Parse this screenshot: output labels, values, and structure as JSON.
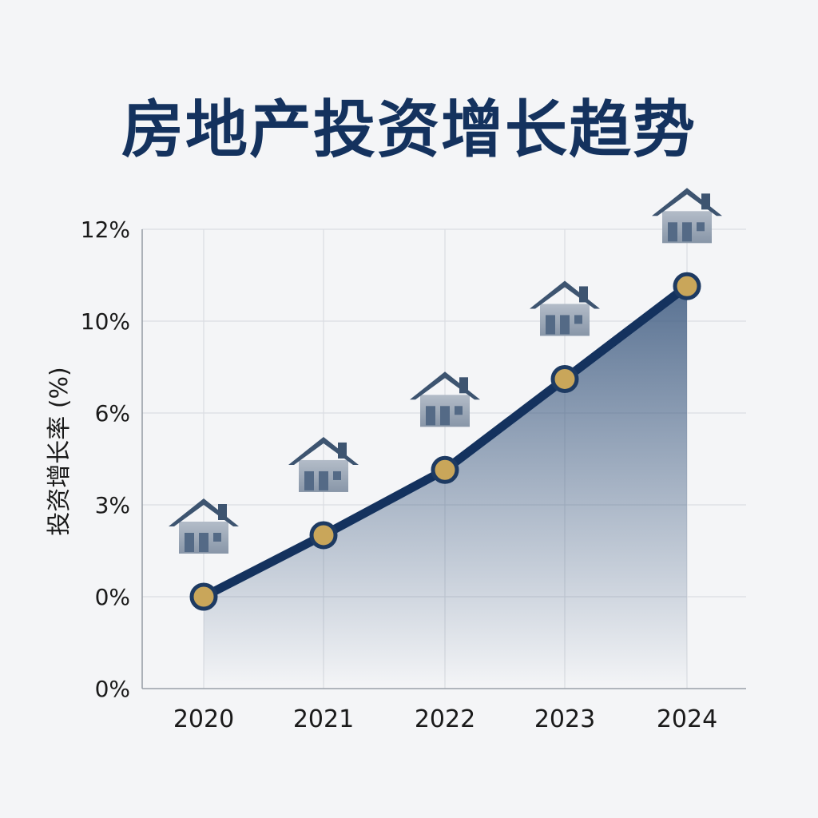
{
  "chart_data": {
    "type": "line",
    "title": "房地产投资增长趋势",
    "ylabel": "投资增长率 (%)",
    "xlabel": "",
    "categories": [
      "2020",
      "2021",
      "2022",
      "2023",
      "2024"
    ],
    "y_tick_labels": [
      "12%",
      "10%",
      "6%",
      "3%",
      "0%",
      "0%"
    ],
    "y_tick_positions": [
      5,
      4,
      3,
      2,
      1,
      0
    ],
    "y_slot_range": [
      0,
      5
    ],
    "series": [
      {
        "values": [
          1.0,
          1.67,
          2.38,
          3.37,
          4.38
        ]
      }
    ],
    "grid": true,
    "area_fill": true,
    "marker_icon": "house-icon",
    "colors": {
      "line": "#14325e",
      "marker_fill": "#c9a65a",
      "marker_stroke": "#1d3a62",
      "area_top": "#3d5a80",
      "grid": "#dadde2",
      "axis": "#9aa0a8",
      "text": "#1a1a1a",
      "house_roof": "#3d5470",
      "house_wall": "#9aa6b6",
      "house_window": "#546a86"
    }
  }
}
